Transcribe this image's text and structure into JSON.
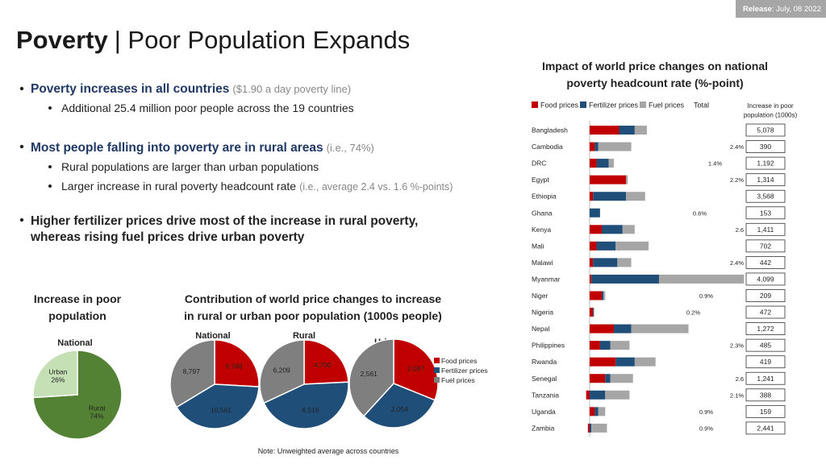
{
  "release": {
    "label": "Release",
    "date": ": July, 08 2022"
  },
  "title": {
    "bold": "Poverty",
    "rest": "| Poor Population Expands"
  },
  "bullets": [
    {
      "text": "Poverty increases in all countries",
      "note": "($1.90 a day poverty line)",
      "sub": [
        {
          "text": "Additional 25.4 million poor people across the 19 countries"
        }
      ]
    },
    {
      "text": "Most people falling into poverty are in rural areas",
      "note": "(i.e., 74%)",
      "sub": [
        {
          "text": "Rural populations are larger than urban populations"
        },
        {
          "text": "Larger increase in rural poverty headcount rate",
          "note": "(i.e., average 2.4 vs. 1.6 %-points)"
        }
      ]
    },
    {
      "lines": [
        "Higher fertilizer prices drive most of the increase in rural poverty,",
        "whereas rising fuel prices drive urban poverty"
      ]
    }
  ],
  "section_titles": {
    "increase": [
      "Increase in poor",
      "population"
    ],
    "contribution": [
      "Contribution of world price changes to increase",
      "in rural or urban poor population (1000s people)"
    ]
  },
  "note": "Note: Unweighted average across countries",
  "chart_data": [
    {
      "type": "bar",
      "orientation": "horizontal",
      "stacked": true,
      "title": [
        "Impact of world price changes on national",
        "poverty headcount rate (%-point)"
      ],
      "categories": [
        "Bangladesh",
        "Cambodia",
        "DRC",
        "Egypt",
        "Ethiopia",
        "Ghana",
        "Kenya",
        "Mali",
        "Malawi",
        "Myanmar",
        "Niger",
        "Nigeria",
        "Nepal",
        "Philippines",
        "Rwanda",
        "Senegal",
        "Tanzania",
        "Uganda",
        "Zambia"
      ],
      "series": [
        {
          "name": "Food prices",
          "color": "#c00000",
          "values": [
            1.7,
            0.3,
            0.4,
            2.1,
            0.2,
            0.0,
            0.7,
            0.4,
            0.2,
            0.1,
            0.7,
            0.2,
            1.4,
            0.6,
            1.5,
            0.9,
            -0.2,
            0.3,
            -0.1
          ]
        },
        {
          "name": "Fertilizer prices",
          "color": "#1f4e79",
          "values": [
            0.9,
            0.2,
            0.7,
            0.0,
            1.9,
            0.6,
            1.2,
            1.1,
            1.4,
            3.9,
            0.1,
            0.05,
            1.0,
            0.6,
            1.1,
            0.3,
            0.9,
            0.2,
            0.1
          ]
        },
        {
          "name": "Fuel prices",
          "color": "#a6a6a6",
          "values": [
            0.7,
            1.9,
            0.3,
            0.1,
            1.1,
            0.0,
            0.7,
            1.9,
            0.8,
            4.9,
            0.1,
            0.0,
            3.3,
            1.1,
            1.2,
            1.3,
            1.4,
            0.4,
            0.9
          ]
        }
      ],
      "total_name": "Total",
      "total_labels": [
        null,
        "2.4%",
        "1.4%",
        "2.2%",
        null,
        "0.6%",
        "2.6",
        null,
        "2.4%",
        null,
        "0.9%",
        "0.2%",
        null,
        "2.3%",
        null,
        "2.6",
        "2.1%",
        "0.9%",
        "0.9%"
      ],
      "increase_title": [
        "Increase in poor",
        "population (1000s)"
      ],
      "increase_labels": [
        "5,078",
        "390",
        "1,192",
        "1,314",
        "3,568",
        "153",
        "1,411",
        "702",
        "442",
        "4,099",
        "209",
        "472",
        "1,272",
        "485",
        "419",
        "1,241",
        "388",
        "159",
        "2,441"
      ],
      "xlim": [
        -0.3,
        9
      ]
    },
    {
      "type": "pie",
      "title": "National",
      "categories": [
        "Rural",
        "Urban"
      ],
      "values": [
        74,
        26
      ],
      "value_labels": [
        "74%",
        "26%"
      ],
      "colors": [
        "#548235",
        "#c5e0b4"
      ]
    },
    {
      "type": "pie",
      "title": "National",
      "categories": [
        "Food prices",
        "Fertilizer prices",
        "Fuel prices"
      ],
      "values": [
        6768,
        10561,
        8797
      ],
      "value_labels": [
        "6,768",
        "10,561",
        "8,797"
      ],
      "colors": [
        "#c00000",
        "#1f4e79",
        "#7f7f7f"
      ]
    },
    {
      "type": "pie",
      "title": "Rural",
      "categories": [
        "Food prices",
        "Fertilizer prices",
        "Fuel prices"
      ],
      "values": [
        4700,
        8516,
        6209
      ],
      "value_labels": [
        "4,700",
        "8,516",
        "6,209"
      ],
      "colors": [
        "#c00000",
        "#1f4e79",
        "#7f7f7f"
      ]
    },
    {
      "type": "pie",
      "title": "Urban",
      "categories": [
        "Food prices",
        "Fertilizer prices",
        "Fuel prices"
      ],
      "values": [
        2087,
        2054,
        2561
      ],
      "value_labels": [
        "2,087",
        "2,054",
        "2,561"
      ],
      "colors": [
        "#c00000",
        "#1f4e79",
        "#7f7f7f"
      ],
      "legend": true
    }
  ]
}
